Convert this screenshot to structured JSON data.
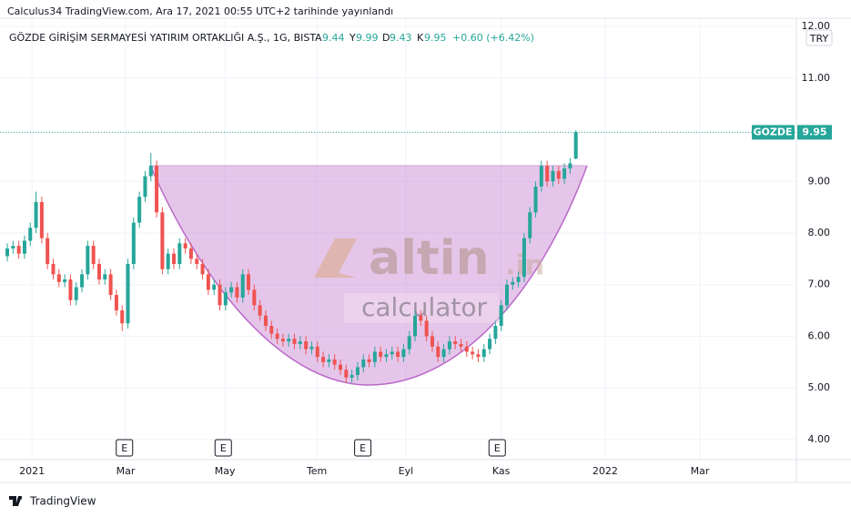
{
  "header": "Calculus34 TradingView.com, Ara 17, 2021 00:55 UTC+2 tarihinde yayınlandı",
  "footer": "TradingView",
  "chart_data": {
    "type": "candlestick",
    "symbol_title": "GÖZDE GİRİŞİM SERMAYESİ YATIRIM ORTAKLIĞI A.Ş., 1G, BIST",
    "legend": {
      "open_label": "A",
      "open": 9.44,
      "high_label": "Y",
      "high": 9.99,
      "low_label": "D",
      "low": 9.43,
      "close_label": "K",
      "close": 9.95,
      "change": "+0.60 (+6.42%)"
    },
    "currency": "TRY",
    "last_price": {
      "label": "GOZDE",
      "value": 9.95
    },
    "up_color": "#26a69a",
    "down_color": "#ef5350",
    "open": [
      7.55,
      7.7,
      7.75,
      7.6,
      7.85,
      8.1,
      8.6,
      7.9,
      7.4,
      7.2,
      7.05,
      7.1,
      6.7,
      6.95,
      7.2,
      7.75,
      7.4,
      7.1,
      7.2,
      6.8,
      6.5,
      6.25,
      7.4,
      8.2,
      8.7,
      9.1,
      9.3,
      8.4,
      7.3,
      7.6,
      7.4,
      7.8,
      7.7,
      7.5,
      7.4,
      7.2,
      6.9,
      7.0,
      6.6,
      6.85,
      6.95,
      6.75,
      7.2,
      6.9,
      6.6,
      6.4,
      6.2,
      6.05,
      5.95,
      5.9,
      5.95,
      5.85,
      5.9,
      5.75,
      5.8,
      5.6,
      5.5,
      5.55,
      5.45,
      5.35,
      5.2,
      5.25,
      5.4,
      5.55,
      5.5,
      5.7,
      5.6,
      5.65,
      5.7,
      5.6,
      5.75,
      6.0,
      6.4,
      6.3,
      6.0,
      5.8,
      5.6,
      5.75,
      5.9,
      5.85,
      5.8,
      5.7,
      5.65,
      5.6,
      5.75,
      5.95,
      6.2,
      6.6,
      7.0,
      7.05,
      7.15,
      7.9,
      8.4,
      8.9,
      9.3,
      9.0,
      9.2,
      9.05,
      9.25,
      9.44
    ],
    "high": [
      7.8,
      7.85,
      7.85,
      7.95,
      8.2,
      8.8,
      8.7,
      8.0,
      7.5,
      7.3,
      7.2,
      7.2,
      7.05,
      7.3,
      7.85,
      7.85,
      7.5,
      7.3,
      7.3,
      6.9,
      6.6,
      7.5,
      8.3,
      8.8,
      9.2,
      9.55,
      9.4,
      8.5,
      7.7,
      7.7,
      7.9,
      7.9,
      7.8,
      7.6,
      7.5,
      7.3,
      7.1,
      7.1,
      6.95,
      7.05,
      7.05,
      7.3,
      7.3,
      7.0,
      6.7,
      6.5,
      6.3,
      6.15,
      6.05,
      6.05,
      6.05,
      6.0,
      6.0,
      5.9,
      5.9,
      5.7,
      5.65,
      5.65,
      5.55,
      5.45,
      5.35,
      5.5,
      5.65,
      5.65,
      5.8,
      5.8,
      5.75,
      5.8,
      5.8,
      5.85,
      6.1,
      6.5,
      6.5,
      6.4,
      6.1,
      5.9,
      5.85,
      6.0,
      6.0,
      5.95,
      5.9,
      5.8,
      5.75,
      5.85,
      6.05,
      6.3,
      6.7,
      7.1,
      7.15,
      7.25,
      8.0,
      8.5,
      9.0,
      9.4,
      9.4,
      9.3,
      9.3,
      9.35,
      9.45,
      9.99
    ],
    "low": [
      7.45,
      7.6,
      7.5,
      7.5,
      7.75,
      8.0,
      7.8,
      7.3,
      7.1,
      6.95,
      6.95,
      6.6,
      6.6,
      6.85,
      7.1,
      7.3,
      7.0,
      7.0,
      6.7,
      6.4,
      6.1,
      6.15,
      7.3,
      8.1,
      8.6,
      9.0,
      8.3,
      7.2,
      7.2,
      7.3,
      7.3,
      7.6,
      7.4,
      7.3,
      7.1,
      6.8,
      6.8,
      6.5,
      6.5,
      6.75,
      6.65,
      6.65,
      6.8,
      6.5,
      6.3,
      6.1,
      5.95,
      5.85,
      5.8,
      5.8,
      5.75,
      5.75,
      5.65,
      5.65,
      5.5,
      5.4,
      5.4,
      5.35,
      5.25,
      5.1,
      5.1,
      5.15,
      5.3,
      5.4,
      5.4,
      5.5,
      5.5,
      5.55,
      5.5,
      5.5,
      5.65,
      5.9,
      6.2,
      5.9,
      5.7,
      5.5,
      5.5,
      5.65,
      5.75,
      5.7,
      5.6,
      5.55,
      5.5,
      5.5,
      5.65,
      5.85,
      6.1,
      6.5,
      6.9,
      6.95,
      7.05,
      7.8,
      8.3,
      8.8,
      8.9,
      8.9,
      8.95,
      8.95,
      9.15,
      9.43
    ],
    "close": [
      7.7,
      7.75,
      7.6,
      7.85,
      8.1,
      8.6,
      7.9,
      7.4,
      7.2,
      7.05,
      7.1,
      6.7,
      6.95,
      7.2,
      7.75,
      7.4,
      7.1,
      7.2,
      6.8,
      6.5,
      6.25,
      7.4,
      8.2,
      8.7,
      9.1,
      9.3,
      8.4,
      7.3,
      7.6,
      7.4,
      7.8,
      7.7,
      7.5,
      7.4,
      7.2,
      6.9,
      7.0,
      6.6,
      6.85,
      6.95,
      6.75,
      7.2,
      6.9,
      6.6,
      6.4,
      6.2,
      6.05,
      5.95,
      5.9,
      5.95,
      5.85,
      5.9,
      5.75,
      5.8,
      5.6,
      5.5,
      5.55,
      5.45,
      5.35,
      5.2,
      5.25,
      5.4,
      5.55,
      5.5,
      5.7,
      5.6,
      5.65,
      5.7,
      5.6,
      5.75,
      6.0,
      6.4,
      6.3,
      6.0,
      5.8,
      5.6,
      5.75,
      5.9,
      5.85,
      5.8,
      5.7,
      5.65,
      5.6,
      5.75,
      5.95,
      6.2,
      6.6,
      7.0,
      7.05,
      7.15,
      7.9,
      8.4,
      8.9,
      9.3,
      9.0,
      9.2,
      9.05,
      9.25,
      9.35,
      9.95
    ],
    "xlim": [
      -1.27,
      137.4
    ],
    "xticks": [
      {
        "value": 4.3,
        "label": "2021"
      },
      {
        "value": 20.6,
        "label": "Mar"
      },
      {
        "value": 37.9,
        "label": "May"
      },
      {
        "value": 53.9,
        "label": "Tem"
      },
      {
        "value": 69.4,
        "label": "Eyl"
      },
      {
        "value": 86.0,
        "label": "Kas"
      },
      {
        "value": 104.1,
        "label": "2022"
      },
      {
        "value": 120.6,
        "label": "Mar"
      }
    ],
    "ylim": [
      3.61,
      12.16
    ],
    "yticks": [
      {
        "value": 4,
        "label": "4.00"
      },
      {
        "value": 5,
        "label": "5.00"
      },
      {
        "value": 6,
        "label": "6.00"
      },
      {
        "value": 7,
        "label": "7.00"
      },
      {
        "value": 8,
        "label": "8.00"
      },
      {
        "value": 9,
        "label": "9.00"
      },
      {
        "value": 11,
        "label": "11.00"
      },
      {
        "value": 12,
        "label": "12.00"
      }
    ],
    "events": [
      {
        "x": 20.4,
        "label": "E"
      },
      {
        "x": 37.6,
        "label": "E"
      },
      {
        "x": 61.9,
        "label": "E"
      },
      {
        "x": 85.3,
        "label": "E"
      }
    ],
    "grid": true,
    "watermark": {
      "brand": "altin",
      "suffix": ".in",
      "tagline": "calculator"
    }
  }
}
